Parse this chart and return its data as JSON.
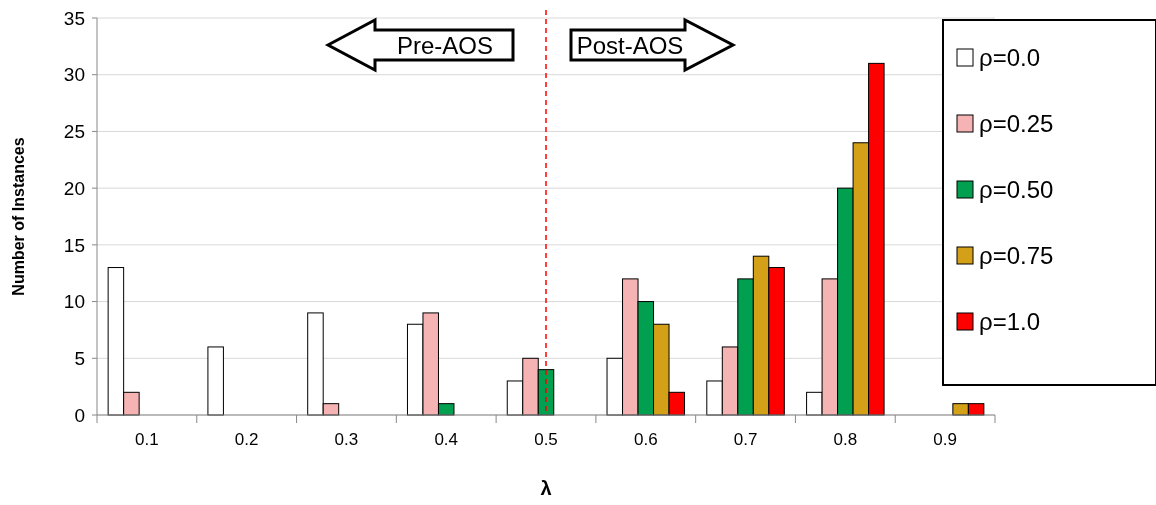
{
  "chart_data": {
    "type": "bar",
    "xlabel": "λ",
    "ylabel": "Number of Instances",
    "categories": [
      "0.1",
      "0.2",
      "0.3",
      "0.4",
      "0.5",
      "0.6",
      "0.7",
      "0.8",
      "0.9"
    ],
    "series": [
      {
        "name": "ρ=0.0",
        "color": "#ffffff",
        "values": [
          13,
          6,
          9,
          8,
          3,
          5,
          3,
          2,
          0
        ]
      },
      {
        "name": "ρ=0.25",
        "color": "#f5b3b3",
        "values": [
          2,
          0,
          1,
          9,
          5,
          12,
          6,
          12,
          0
        ]
      },
      {
        "name": "ρ=0.50",
        "color": "#00a050",
        "values": [
          0,
          0,
          0,
          1,
          4,
          10,
          12,
          20,
          0
        ]
      },
      {
        "name": "ρ=0.75",
        "color": "#d4a017",
        "values": [
          0,
          0,
          0,
          0,
          0,
          8,
          14,
          24,
          1
        ]
      },
      {
        "name": "ρ=1.0",
        "color": "#ff0000",
        "values": [
          0,
          0,
          0,
          0,
          0,
          2,
          13,
          31,
          1
        ]
      }
    ],
    "ylim": [
      0,
      35
    ],
    "yticks": [
      0,
      5,
      10,
      15,
      20,
      25,
      30,
      35
    ],
    "grid": "y",
    "legend": "right",
    "ref_lines": [
      {
        "axis": "x",
        "value": "0.5",
        "color": "#ff0000",
        "line_style": "dashed"
      }
    ],
    "annotations": [
      "Pre-AOS",
      "Post-AOS"
    ]
  }
}
